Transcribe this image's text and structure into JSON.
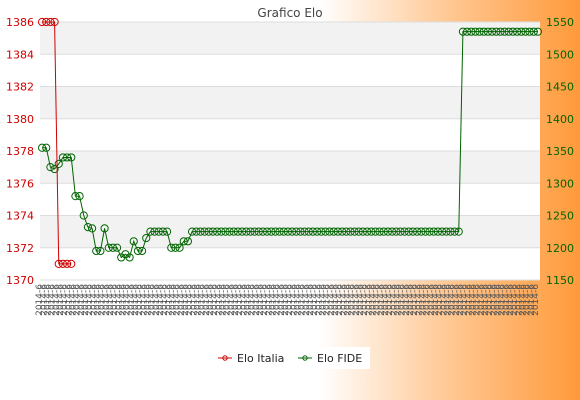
{
  "chart_data": {
    "type": "line",
    "title": "Grafico Elo",
    "y_left": {
      "min": 1370,
      "max": 1386,
      "step": 2,
      "color": "#d00000"
    },
    "y_right": {
      "min": 1150,
      "max": 1550,
      "step": 50,
      "color": "#006400"
    },
    "grid": true,
    "legend_position": "bottom",
    "x_tick_label_sample": "2014-6",
    "series": [
      {
        "name": "Elo Italia",
        "axis": "left",
        "color": "#d00000",
        "values": [
          1386,
          1386,
          1386,
          1386,
          1371,
          1371,
          1371,
          1371
        ]
      },
      {
        "name": "Elo FIDE",
        "axis": "right",
        "color": "#006400",
        "values": [
          1355,
          1355,
          1325,
          1322,
          1330,
          1340,
          1340,
          1340,
          1280,
          1280,
          1250,
          1232,
          1230,
          1195,
          1195,
          1230,
          1200,
          1200,
          1200,
          1185,
          1190,
          1185,
          1210,
          1195,
          1195,
          1215,
          1225,
          1225,
          1225,
          1225,
          1225,
          1200,
          1200,
          1200,
          1210,
          1210,
          1225,
          1225,
          1225,
          1225,
          1225,
          1225,
          1225,
          1225,
          1225,
          1225,
          1225,
          1225,
          1225,
          1225,
          1225,
          1225,
          1225,
          1225,
          1225,
          1225,
          1225,
          1225,
          1225,
          1225,
          1225,
          1225,
          1225,
          1225,
          1225,
          1225,
          1225,
          1225,
          1225,
          1225,
          1225,
          1225,
          1225,
          1225,
          1225,
          1225,
          1225,
          1225,
          1225,
          1225,
          1225,
          1225,
          1225,
          1225,
          1225,
          1225,
          1225,
          1225,
          1225,
          1225,
          1225,
          1225,
          1225,
          1225,
          1225,
          1225,
          1225,
          1225,
          1225,
          1225,
          1225,
          1535,
          1535,
          1535,
          1535,
          1535,
          1535,
          1535,
          1535,
          1535,
          1535,
          1535,
          1535,
          1535,
          1535,
          1535,
          1535,
          1535,
          1535,
          1535
        ]
      }
    ]
  }
}
